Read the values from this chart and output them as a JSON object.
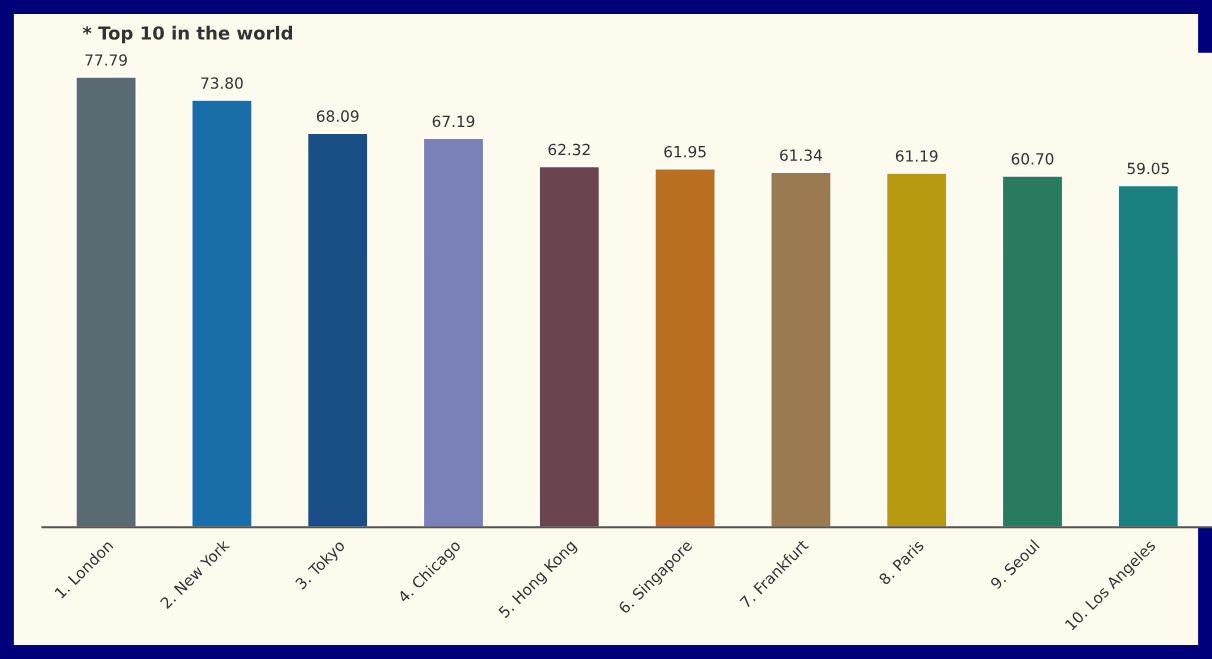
{
  "chart_data": {
    "type": "bar",
    "title": "* Top 10 in the world",
    "categories": [
      "1. London",
      "2. New York",
      "3. Tokyo",
      "4. Chicago",
      "5. Hong Kong",
      "6. Singapore",
      "7. Frankfurt",
      "8. Paris",
      "9. Seoul",
      "10. Los Angeles"
    ],
    "values": [
      77.79,
      73.8,
      68.09,
      67.19,
      62.32,
      61.95,
      61.34,
      61.19,
      60.7,
      59.05
    ],
    "value_labels": [
      "77.79",
      "73.80",
      "68.09",
      "67.19",
      "62.32",
      "61.95",
      "61.34",
      "61.19",
      "60.70",
      "59.05"
    ],
    "colors": [
      "#5a6a72",
      "#1a6ea8",
      "#1a4f86",
      "#7a80b8",
      "#6a4550",
      "#b87020",
      "#9a7a50",
      "#b89a10",
      "#2a7a60",
      "#1a8080"
    ],
    "ylim": [
      0,
      82
    ],
    "tick_labels": "x",
    "grid": false,
    "legend": false
  }
}
